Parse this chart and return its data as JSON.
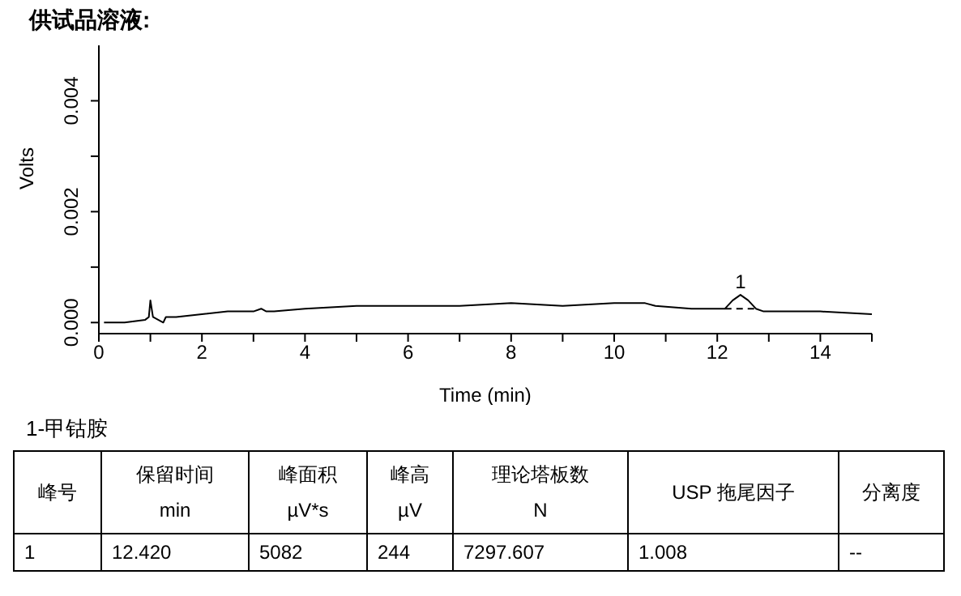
{
  "chart_data": {
    "type": "line",
    "title": "供试品溶液:",
    "xlabel": "Time (min)",
    "ylabel": "Volts",
    "xlim": [
      0,
      15
    ],
    "ylim": [
      -0.0002,
      0.005
    ],
    "xticks": [
      0,
      {
        "value": 1,
        "label": null
      },
      2,
      {
        "value": 3,
        "label": null
      },
      4,
      {
        "value": 5,
        "label": null
      },
      6,
      {
        "value": 7,
        "label": null
      },
      8,
      {
        "value": 9,
        "label": null
      },
      10,
      {
        "value": 11,
        "label": null
      },
      12,
      {
        "value": 13,
        "label": null
      },
      14,
      {
        "value": 15,
        "label": null
      }
    ],
    "yticks": [
      {
        "value": 0,
        "label": "0.000"
      },
      {
        "value": 0.001,
        "label": null
      },
      {
        "value": 0.002,
        "label": "0.002"
      },
      {
        "value": 0.003,
        "label": null
      },
      {
        "value": 0.004,
        "label": "0.004"
      }
    ],
    "grid": false,
    "marker": "none",
    "line_style": "solid",
    "series": [
      {
        "color": "#000000",
        "x": [
          0.1,
          0.5,
          0.9,
          0.97,
          1.0,
          1.05,
          1.15,
          1.25,
          1.3,
          1.5,
          2,
          2.5,
          3,
          3.15,
          3.25,
          3.4,
          4,
          5,
          6,
          7,
          8,
          9,
          10,
          10.6,
          10.8,
          11.5,
          12,
          12.15,
          12.3,
          12.45,
          12.6,
          12.75,
          12.9,
          13.5,
          14,
          15
        ],
        "values": [
          0,
          0,
          5e-05,
          0.0001,
          0.0004,
          0.0001,
          5e-05,
          0,
          0.0001,
          0.0001,
          0.00015,
          0.0002,
          0.0002,
          0.00025,
          0.0002,
          0.0002,
          0.00025,
          0.0003,
          0.0003,
          0.0003,
          0.00035,
          0.0003,
          0.00035,
          0.00035,
          0.0003,
          0.00025,
          0.00025,
          0.00025,
          0.0004,
          0.0005,
          0.0004,
          0.00025,
          0.0002,
          0.0002,
          0.0002,
          0.00015
        ]
      },
      {
        "color": "#000000",
        "line_style": "dashed",
        "x": [
          12.15,
          12.8
        ],
        "values": [
          0.00025,
          0.00025
        ]
      }
    ],
    "annotations": [
      {
        "text": "1",
        "x": 12.45,
        "y": 0.0005
      },
      "1-甲钴胺",
      "峰号",
      "保留时间\nmin",
      "峰面积\nµV*s",
      "峰高\nµV",
      "理论塔板数\nN",
      "USP 拖尾因子",
      "分离度",
      "1",
      "12.420",
      "5082",
      "244",
      "7297.607",
      "1.008",
      "--"
    ]
  }
}
